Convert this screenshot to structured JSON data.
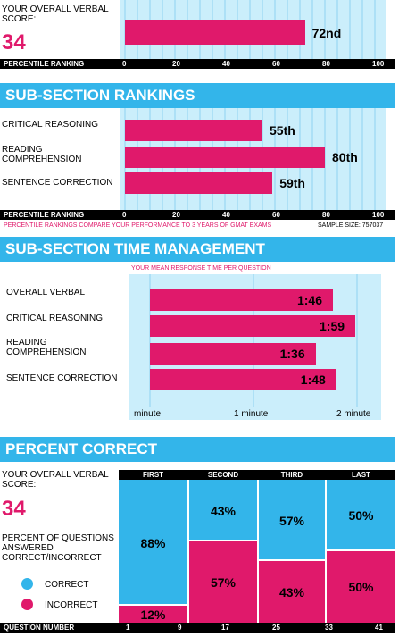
{
  "overall": {
    "label": "YOUR OVERALL VERBAL SCORE:",
    "score": "34",
    "bar_value": 72,
    "bar_label": "72nd"
  },
  "percentile_axis": {
    "label": "PERCENTILE RANKING",
    "ticks": [
      "0",
      "20",
      "40",
      "60",
      "80",
      "100"
    ]
  },
  "subsection": {
    "title": "SUB-SECTION RANKINGS",
    "note": "PERCENTILE RANKINGS COMPARE YOUR PERFORMANCE TO 3 YEARS OF GMAT EXAMS",
    "sample": "SAMPLE SIZE: 757037"
  },
  "time": {
    "title": "SUB-SECTION TIME MANAGEMENT",
    "subtitle": "YOUR MEAN RESPONSE TIME PER QUESTION",
    "ticks": [
      "minute",
      "1 minute",
      "2 minute"
    ]
  },
  "percent": {
    "title": "PERCENT CORRECT",
    "score_label": "YOUR OVERALL VERBAL SCORE:",
    "score": "34",
    "desc": "PERCENT OF QUESTIONS ANSWERED CORRECT/INCORRECT",
    "legend_correct": "CORRECT",
    "legend_incorrect": "INCORRECT",
    "axis_label": "QUESTION NUMBER",
    "qticks": [
      "1",
      "9",
      "17",
      "25",
      "33",
      "41"
    ]
  },
  "colors": {
    "pink": "#e0196b",
    "blue": "#33b5ea",
    "lightblue": "#cbeefb"
  },
  "chart_data": [
    {
      "type": "bar",
      "categories": [
        "OVERALL VERBAL"
      ],
      "values": [
        72
      ],
      "data_labels": [
        "72nd"
      ],
      "xlabel": "PERCENTILE RANKING",
      "xlim": [
        0,
        100
      ]
    },
    {
      "type": "bar",
      "title": "SUB-SECTION RANKINGS",
      "categories": [
        "CRITICAL REASONING",
        "READING COMPREHENSION",
        "SENTENCE CORRECTION"
      ],
      "values": [
        55,
        80,
        59
      ],
      "data_labels": [
        "55th",
        "80th",
        "59th"
      ],
      "xlabel": "PERCENTILE RANKING",
      "xlim": [
        0,
        100
      ]
    },
    {
      "type": "bar",
      "title": "SUB-SECTION TIME MANAGEMENT",
      "subtitle": "YOUR MEAN RESPONSE TIME PER QUESTION",
      "categories": [
        "OVERALL VERBAL",
        "CRITICAL REASONING",
        "READING COMPREHENSION",
        "SENTENCE CORRECTION"
      ],
      "values": [
        1.767,
        1.983,
        1.6,
        1.8
      ],
      "data_labels": [
        "1:46",
        "1:59",
        "1:36",
        "1:48"
      ],
      "xlim": [
        0,
        2
      ]
    },
    {
      "type": "bar",
      "title": "PERCENT CORRECT",
      "categories": [
        "FIRST",
        "SECOND",
        "THIRD",
        "LAST"
      ],
      "series": [
        {
          "name": "CORRECT",
          "values": [
            88,
            43,
            57,
            50
          ]
        },
        {
          "name": "INCORRECT",
          "values": [
            12,
            57,
            43,
            50
          ]
        }
      ],
      "xlabel": "QUESTION NUMBER",
      "ylim": [
        0,
        100
      ]
    }
  ],
  "time_rows": [
    "OVERALL VERBAL",
    "CRITICAL REASONING",
    "READING COMPREHENSION",
    "SENTENCE CORRECTION"
  ],
  "rank_rows": [
    "CRITICAL REASONING",
    "READING COMPREHENSION",
    "SENTENCE CORRECTION"
  ]
}
